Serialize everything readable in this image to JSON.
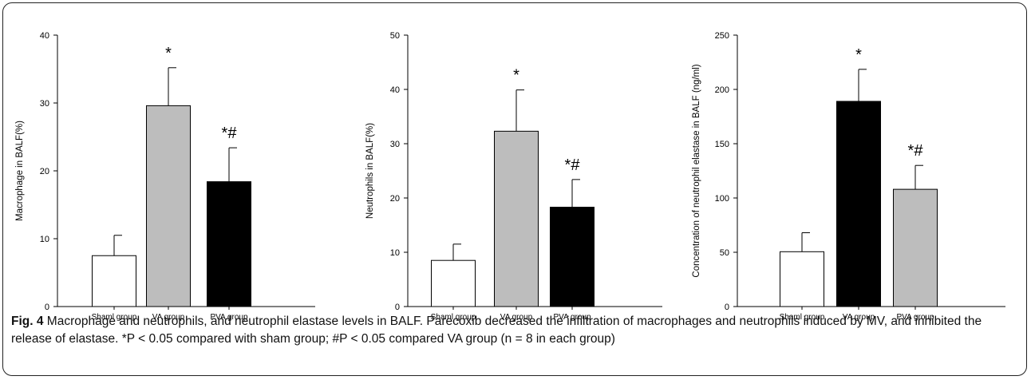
{
  "charts": [
    {
      "type": "bar",
      "ylabel": "Macrophage in BALF(%)",
      "ylim": [
        0,
        40
      ],
      "yticks": [
        0,
        10,
        20,
        30,
        40
      ],
      "categories": [
        "Shaml group",
        "VA group",
        "PVA group"
      ],
      "values": [
        7.5,
        29.6,
        18.4
      ],
      "errors": [
        3.0,
        5.6,
        5.0
      ],
      "colors": [
        "#ffffff",
        "#bdbdbd",
        "#000000"
      ],
      "annotations": [
        "",
        "*",
        "*#"
      ]
    },
    {
      "type": "bar",
      "ylabel": "Neutrophils in BALF(%)",
      "ylim": [
        0,
        50
      ],
      "yticks": [
        0,
        10,
        20,
        30,
        40,
        50
      ],
      "categories": [
        "Shaml group",
        "VA group",
        "PVA group"
      ],
      "values": [
        8.5,
        32.3,
        18.3
      ],
      "errors": [
        3.0,
        7.6,
        5.1
      ],
      "colors": [
        "#ffffff",
        "#bdbdbd",
        "#000000"
      ],
      "annotations": [
        "",
        "*",
        "*#"
      ]
    },
    {
      "type": "bar",
      "ylabel": "Concentration of neutrophil elastase in BALF (ng/ml)",
      "ylim": [
        0,
        250
      ],
      "yticks": [
        0,
        50,
        100,
        150,
        200,
        250
      ],
      "categories": [
        "Shaml group",
        "VA group",
        "PVA group"
      ],
      "values": [
        50.5,
        189.0,
        108.0
      ],
      "errors": [
        17.5,
        29.5,
        22.0
      ],
      "colors": [
        "#ffffff",
        "#000000",
        "#bdbdbd"
      ],
      "annotations": [
        "",
        "*",
        "*#"
      ]
    }
  ],
  "caption": {
    "label": "Fig. 4",
    "text": " Macrophage and neutrophils, and neutrophil elastase levels in BALF. Parecoxib decreased the infiltration of macrophages and neutrophils induced by MV, and inhibited the release of elastase. *P < 0.05 compared with sham group; #P < 0.05 compared VA group (n = 8 in each group)"
  }
}
